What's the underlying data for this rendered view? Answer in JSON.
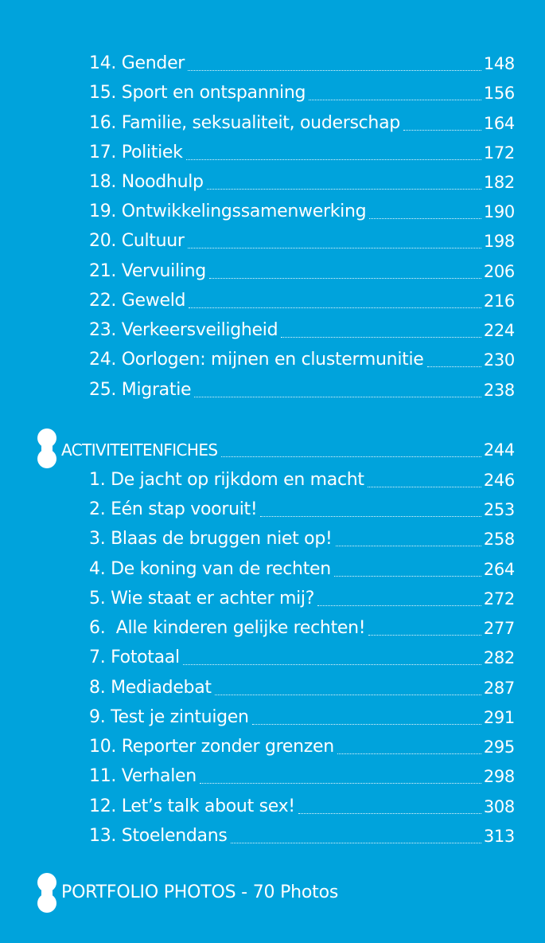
{
  "toc_part1": [
    {
      "label": "14. Gender",
      "page": "148"
    },
    {
      "label": "15. Sport en ontspanning",
      "page": "156"
    },
    {
      "label": "16. Familie, seksualiteit, ouderschap",
      "page": "164"
    },
    {
      "label": "17. Politiek",
      "page": "172"
    },
    {
      "label": "18. Noodhulp",
      "page": "182"
    },
    {
      "label": "19. Ontwikkelingssamenwerking",
      "page": "190"
    },
    {
      "label": "20. Cultuur",
      "page": "198"
    },
    {
      "label": "21. Vervuiling",
      "page": "206"
    },
    {
      "label": "22. Geweld",
      "page": "216"
    },
    {
      "label": "23. Verkeersveiligheid",
      "page": "224"
    },
    {
      "label": "24. Oorlogen: mijnen en clustermunitie",
      "page": "230"
    },
    {
      "label": "25. Migratie",
      "page": "238"
    }
  ],
  "section_activities": {
    "label": "ACTIVITEITENFICHES",
    "page": "244"
  },
  "toc_part2": [
    {
      "label": "1. De jacht op rijkdom en macht",
      "page": "246"
    },
    {
      "label": "2. Eén stap vooruit!",
      "page": "253"
    },
    {
      "label": "3. Blaas de bruggen niet op!",
      "page": "258"
    },
    {
      "label": "4. De koning van de rechten",
      "page": "264"
    },
    {
      "label": "5. Wie staat er achter mij?",
      "page": "272"
    },
    {
      "label": "6.  Alle kinderen gelijke rechten!",
      "page": "277"
    },
    {
      "label": "7. Fototaal",
      "page": "282"
    },
    {
      "label": "8. Mediadebat",
      "page": "287"
    },
    {
      "label": "9. Test je zintuigen",
      "page": "291"
    },
    {
      "label": "10. Reporter zonder grenzen",
      "page": "295"
    },
    {
      "label": "11. Verhalen",
      "page": "298"
    },
    {
      "label": "12. Let’s talk about sex!",
      "page": "308"
    },
    {
      "label": "13. Stoelendans",
      "page": "313"
    }
  ],
  "portfolio_heading": "PORTFOLIO PHOTOS - 70 Photos",
  "colors": {
    "background": "#00a3dc",
    "text": "#ffffff"
  }
}
